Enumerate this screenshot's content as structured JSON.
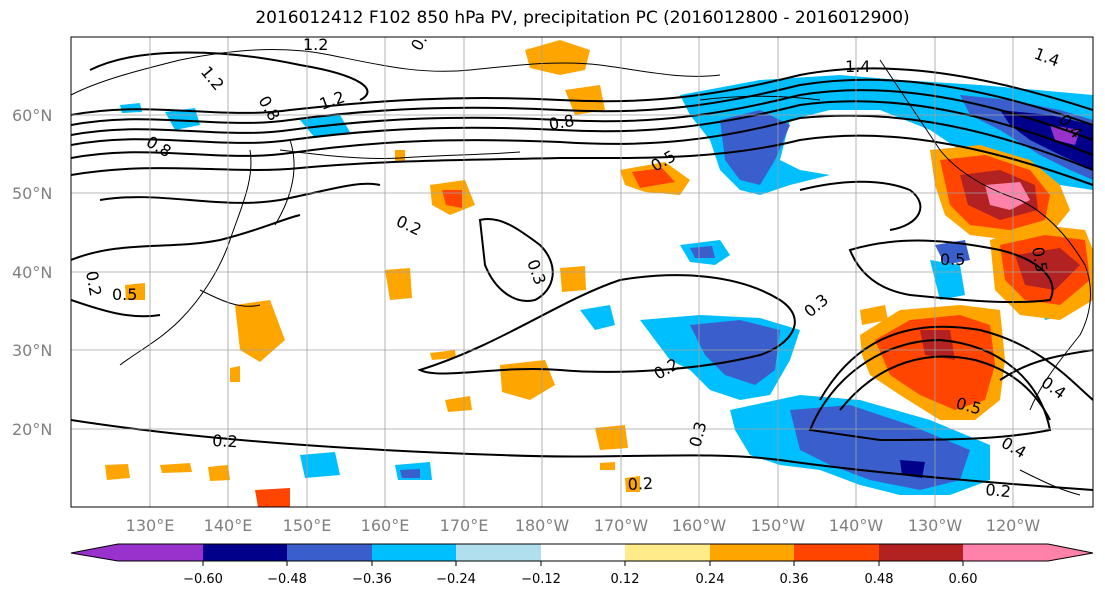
{
  "title": "2016012412 F102 850 hPa PV, precipitation PC (2016012800 - 2016012900)",
  "map": {
    "lat_labels": [
      "60°N",
      "50°N",
      "40°N",
      "30°N",
      "20°N"
    ],
    "lon_labels": [
      "130°E",
      "140°E",
      "150°E",
      "160°E",
      "170°E",
      "180°W",
      "170°W",
      "160°W",
      "150°W",
      "140°W",
      "130°W",
      "120°W"
    ],
    "contour_labels": [
      "1.2",
      "1.2",
      "0.8",
      "1.2",
      "0.8",
      "0.8",
      "0.8",
      "1.4",
      "1.4",
      "0.5",
      "0.5",
      "0.2",
      "0.3",
      "0.5",
      "0.3",
      "0.2",
      "0.3",
      "0.2",
      "0.5",
      "0.4",
      "0.4",
      "0.2",
      "0.2",
      "0.2",
      "0.4",
      "0.5"
    ]
  },
  "colorbar": {
    "ticks": [
      "−0.60",
      "−0.48",
      "−0.36",
      "−0.24",
      "−0.12",
      "0.12",
      "0.24",
      "0.36",
      "0.48",
      "0.60"
    ],
    "colors": [
      "#9932cc",
      "#00008b",
      "#3a5fcd",
      "#00bfff",
      "#b2dfee",
      "#ffffff",
      "#ffeb8a",
      "#ffa500",
      "#ff4500",
      "#b22222",
      "#ff82ab"
    ]
  }
}
